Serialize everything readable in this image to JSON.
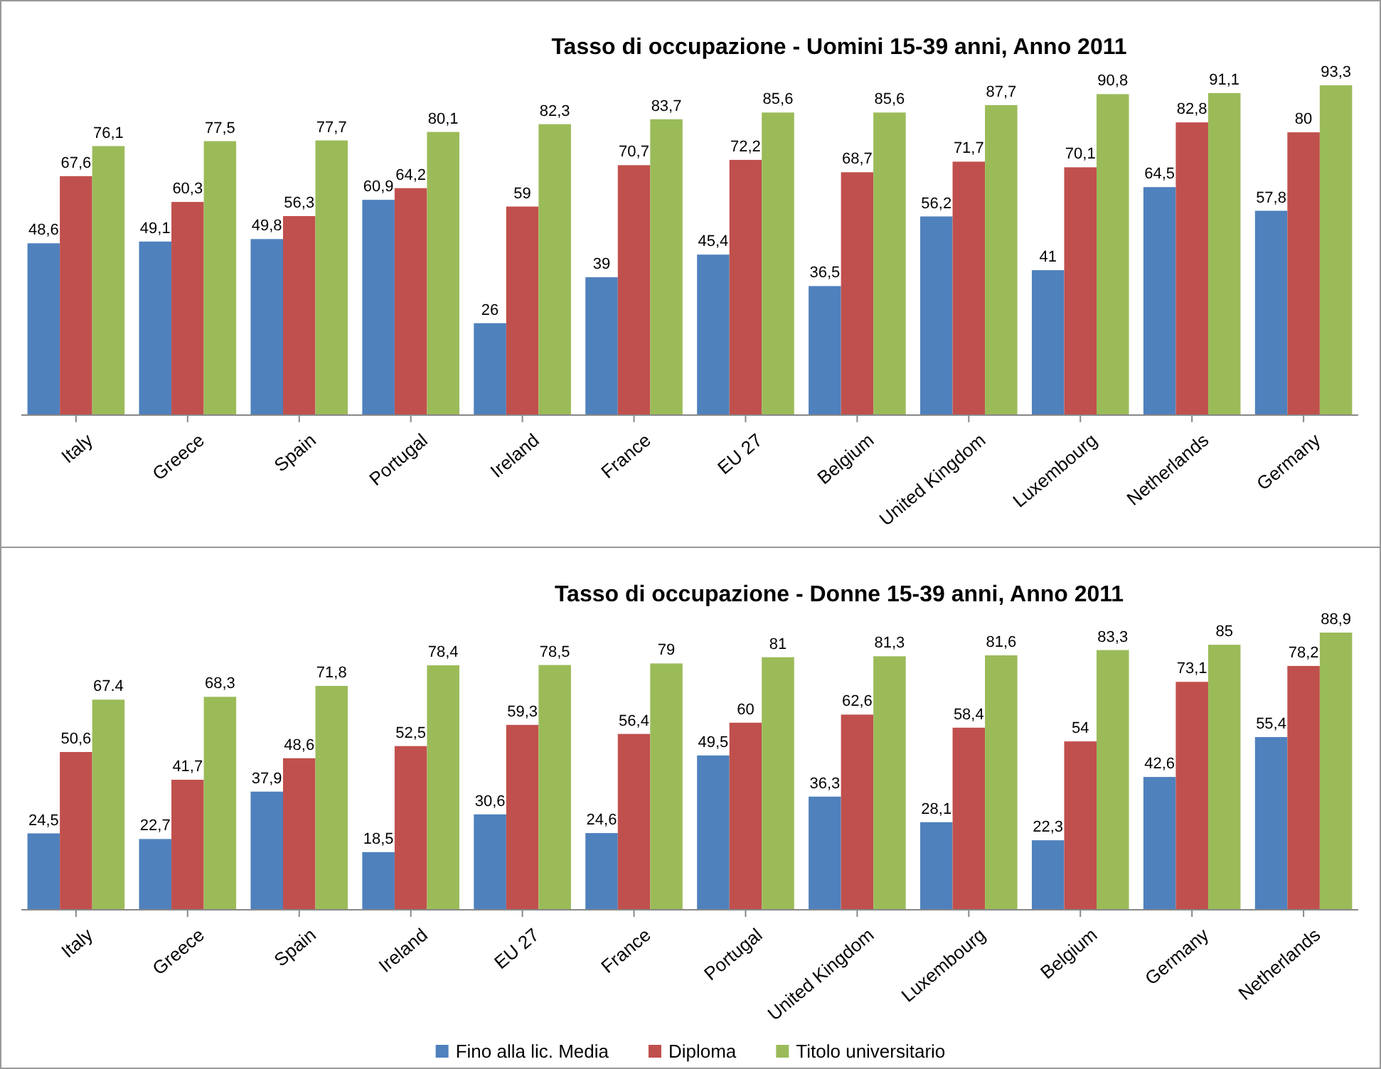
{
  "chart_data": [
    {
      "type": "bar",
      "title": "Tasso di occupazione - Uomini 15-39 anni, Anno 2011",
      "categories": [
        "Italy",
        "Greece",
        "Spain",
        "Portugal",
        "Ireland",
        "France",
        "EU 27",
        "Belgium",
        "United Kingdom",
        "Luxembourg",
        "Netherlands",
        "Germany"
      ],
      "legend": false,
      "series": [
        {
          "color": "#4f81bd",
          "values": [
            48.6,
            49.1,
            49.8,
            60.9,
            26,
            39,
            45.4,
            36.5,
            56.2,
            41,
            64.5,
            57.8
          ],
          "value_labels": [
            "48,6",
            "49,1",
            "49,8",
            "60,9",
            "26",
            "39",
            "45,4",
            "36,5",
            "56,2",
            "41",
            "64,5",
            "57,8"
          ]
        },
        {
          "color": "#c0504d",
          "values": [
            67.6,
            60.3,
            56.3,
            64.2,
            59,
            70.7,
            72.2,
            68.7,
            71.7,
            70.1,
            82.8,
            80
          ],
          "value_labels": [
            "67,6",
            "60,3",
            "56,3",
            "64,2",
            "59",
            "70,7",
            "72,2",
            "68,7",
            "71,7",
            "70,1",
            "82,8",
            "80"
          ]
        },
        {
          "color": "#9bbb59",
          "values": [
            76.1,
            77.5,
            77.7,
            80.1,
            82.3,
            83.7,
            85.6,
            85.6,
            87.7,
            90.8,
            91.1,
            93.3
          ],
          "value_labels": [
            "76,1",
            "77,5",
            "77,7",
            "80,1",
            "82,3",
            "83,7",
            "85,6",
            "85,6",
            "87,7",
            "90,8",
            "91,1",
            "93,3"
          ]
        }
      ]
    },
    {
      "type": "bar",
      "title": "Tasso di occupazione - Donne 15-39 anni, Anno 2011",
      "categories": [
        "Italy",
        "Greece",
        "Spain",
        "Ireland",
        "EU 27",
        "France",
        "Portugal",
        "United Kingdom",
        "Luxembourg",
        "Belgium",
        "Germany",
        "Netherlands"
      ],
      "legend": "bottom",
      "series": [
        {
          "name": "Fino alla lic. Media",
          "color": "#4f81bd",
          "values": [
            24.5,
            22.7,
            37.9,
            18.5,
            30.6,
            24.6,
            49.5,
            36.3,
            28.1,
            22.3,
            42.6,
            55.4
          ],
          "value_labels": [
            "24,5",
            "22,7",
            "37,9",
            "18,5",
            "30,6",
            "24,6",
            "49,5",
            "36,3",
            "28,1",
            "22,3",
            "42,6",
            "55,4"
          ]
        },
        {
          "name": "Diploma",
          "color": "#c0504d",
          "values": [
            50.6,
            41.7,
            48.6,
            52.5,
            59.3,
            56.4,
            60,
            62.6,
            58.4,
            54,
            73.1,
            78.2
          ],
          "value_labels": [
            "50,6",
            "41,7",
            "48,6",
            "52,5",
            "59,3",
            "56,4",
            "60",
            "62,6",
            "58,4",
            "54",
            "73,1",
            "78,2"
          ]
        },
        {
          "name": "Titolo universitario",
          "color": "#9bbb59",
          "values": [
            67.4,
            68.3,
            71.8,
            78.4,
            78.5,
            79,
            81,
            81.3,
            81.6,
            83.3,
            85,
            88.9
          ],
          "value_labels": [
            "67.4",
            "68,3",
            "71,8",
            "78,4",
            "78,5",
            "79",
            "81",
            "81,3",
            "81,6",
            "83,3",
            "85",
            "88,9"
          ]
        }
      ]
    }
  ]
}
